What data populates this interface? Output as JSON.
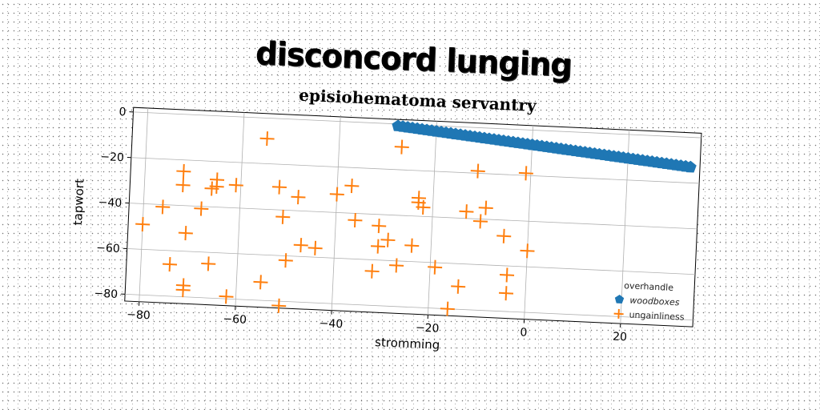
{
  "title": "disconcord lunging",
  "chart_data": {
    "type": "scatter",
    "subtitle": "episiohematoma servantry",
    "xlabel": "stromming",
    "ylabel": "tapwort",
    "xlim": [
      -83,
      35
    ],
    "ylim": [
      -83,
      2
    ],
    "xticks": [
      -80,
      -60,
      -40,
      -20,
      0,
      20
    ],
    "yticks": [
      0,
      -20,
      -40,
      -60,
      -80
    ],
    "grid": true,
    "legend": {
      "title": "overhandle",
      "placement": "bottom-right"
    },
    "series": [
      {
        "name": "woodboxes",
        "marker": "pentagon",
        "color": "#1f77b4",
        "points": [
          [
            -28,
            -0.9
          ],
          [
            -27,
            -1.1
          ],
          [
            -26,
            -1.3
          ],
          [
            -25,
            -1.5
          ],
          [
            -24,
            -1.7
          ],
          [
            -23,
            -1.9
          ],
          [
            -22,
            -2.1
          ],
          [
            -21,
            -2.3
          ],
          [
            -20,
            -2.5
          ],
          [
            -19,
            -2.7
          ],
          [
            -18,
            -2.9
          ],
          [
            -17,
            -3.1
          ],
          [
            -16,
            -3.3
          ],
          [
            -15,
            -3.5
          ],
          [
            -14,
            -3.7
          ],
          [
            -13,
            -3.9
          ],
          [
            -12,
            -4.1
          ],
          [
            -11,
            -4.3
          ],
          [
            -10,
            -4.5
          ],
          [
            -9,
            -4.7
          ],
          [
            -8,
            -4.9
          ],
          [
            -7,
            -5.1
          ],
          [
            -6,
            -5.3
          ],
          [
            -5,
            -5.5
          ],
          [
            -4,
            -5.7
          ],
          [
            -3,
            -5.9
          ],
          [
            -2,
            -6.1
          ],
          [
            -1,
            -6.3
          ],
          [
            0,
            -6.5
          ],
          [
            1,
            -6.7
          ],
          [
            2,
            -6.9
          ],
          [
            3,
            -7.1
          ],
          [
            4,
            -7.3
          ],
          [
            5,
            -7.5
          ],
          [
            6,
            -7.7
          ],
          [
            7,
            -7.9
          ],
          [
            8,
            -8.1
          ],
          [
            9,
            -8.3
          ],
          [
            10,
            -8.5
          ],
          [
            11,
            -8.7
          ],
          [
            12,
            -8.9
          ],
          [
            13,
            -9.1
          ],
          [
            14,
            -9.3
          ],
          [
            15,
            -9.5
          ],
          [
            16,
            -9.7
          ],
          [
            17,
            -9.9
          ],
          [
            18,
            -10.1
          ],
          [
            19,
            -10.3
          ],
          [
            20,
            -10.5
          ],
          [
            21,
            -10.7
          ],
          [
            22,
            -10.9
          ],
          [
            23,
            -11.1
          ],
          [
            24,
            -11.3
          ],
          [
            25,
            -11.5
          ],
          [
            26,
            -11.7
          ],
          [
            27,
            -11.9
          ],
          [
            28,
            -12.1
          ],
          [
            29,
            -12.3
          ],
          [
            30,
            -12.5
          ],
          [
            31,
            -12.7
          ],
          [
            32,
            -12.9
          ],
          [
            33,
            -13.1
          ]
        ]
      },
      {
        "name": "ungainliness",
        "marker": "plus",
        "color": "#ff7f0e",
        "points": [
          [
            -80,
            -49
          ],
          [
            -76,
            -41
          ],
          [
            -74,
            -66
          ],
          [
            -72,
            -25
          ],
          [
            -72,
            -31
          ],
          [
            -71,
            -52
          ],
          [
            -71,
            -75
          ],
          [
            -71,
            -77
          ],
          [
            -68,
            -41
          ],
          [
            -66,
            -32
          ],
          [
            -66,
            -65
          ],
          [
            -65,
            -28
          ],
          [
            -65,
            -31
          ],
          [
            -62,
            -79
          ],
          [
            -61,
            -30
          ],
          [
            -55,
            -9
          ],
          [
            -55,
            -72
          ],
          [
            -52,
            -30
          ],
          [
            -51,
            -43
          ],
          [
            -51,
            -82
          ],
          [
            -50,
            -62
          ],
          [
            -48,
            -34
          ],
          [
            -47,
            -55
          ],
          [
            -44,
            -56
          ],
          [
            -40,
            -32
          ],
          [
            -37,
            -28
          ],
          [
            -36,
            -43
          ],
          [
            -32,
            -65
          ],
          [
            -31,
            -54
          ],
          [
            -31,
            -45
          ],
          [
            -29,
            -51
          ],
          [
            -27,
            -10
          ],
          [
            -27,
            -62
          ],
          [
            -24,
            -53
          ],
          [
            -23,
            -32
          ],
          [
            -23,
            -34
          ],
          [
            -22,
            -36
          ],
          [
            -19,
            -62
          ],
          [
            -16,
            -80
          ],
          [
            -14,
            -70
          ],
          [
            -13,
            -37
          ],
          [
            -11,
            -19
          ],
          [
            -10,
            -41
          ],
          [
            -9,
            -35
          ],
          [
            -5,
            -47
          ],
          [
            -4,
            -64
          ],
          [
            -4,
            -72
          ],
          [
            -1,
            -19
          ],
          [
            0,
            -53
          ]
        ]
      }
    ]
  }
}
